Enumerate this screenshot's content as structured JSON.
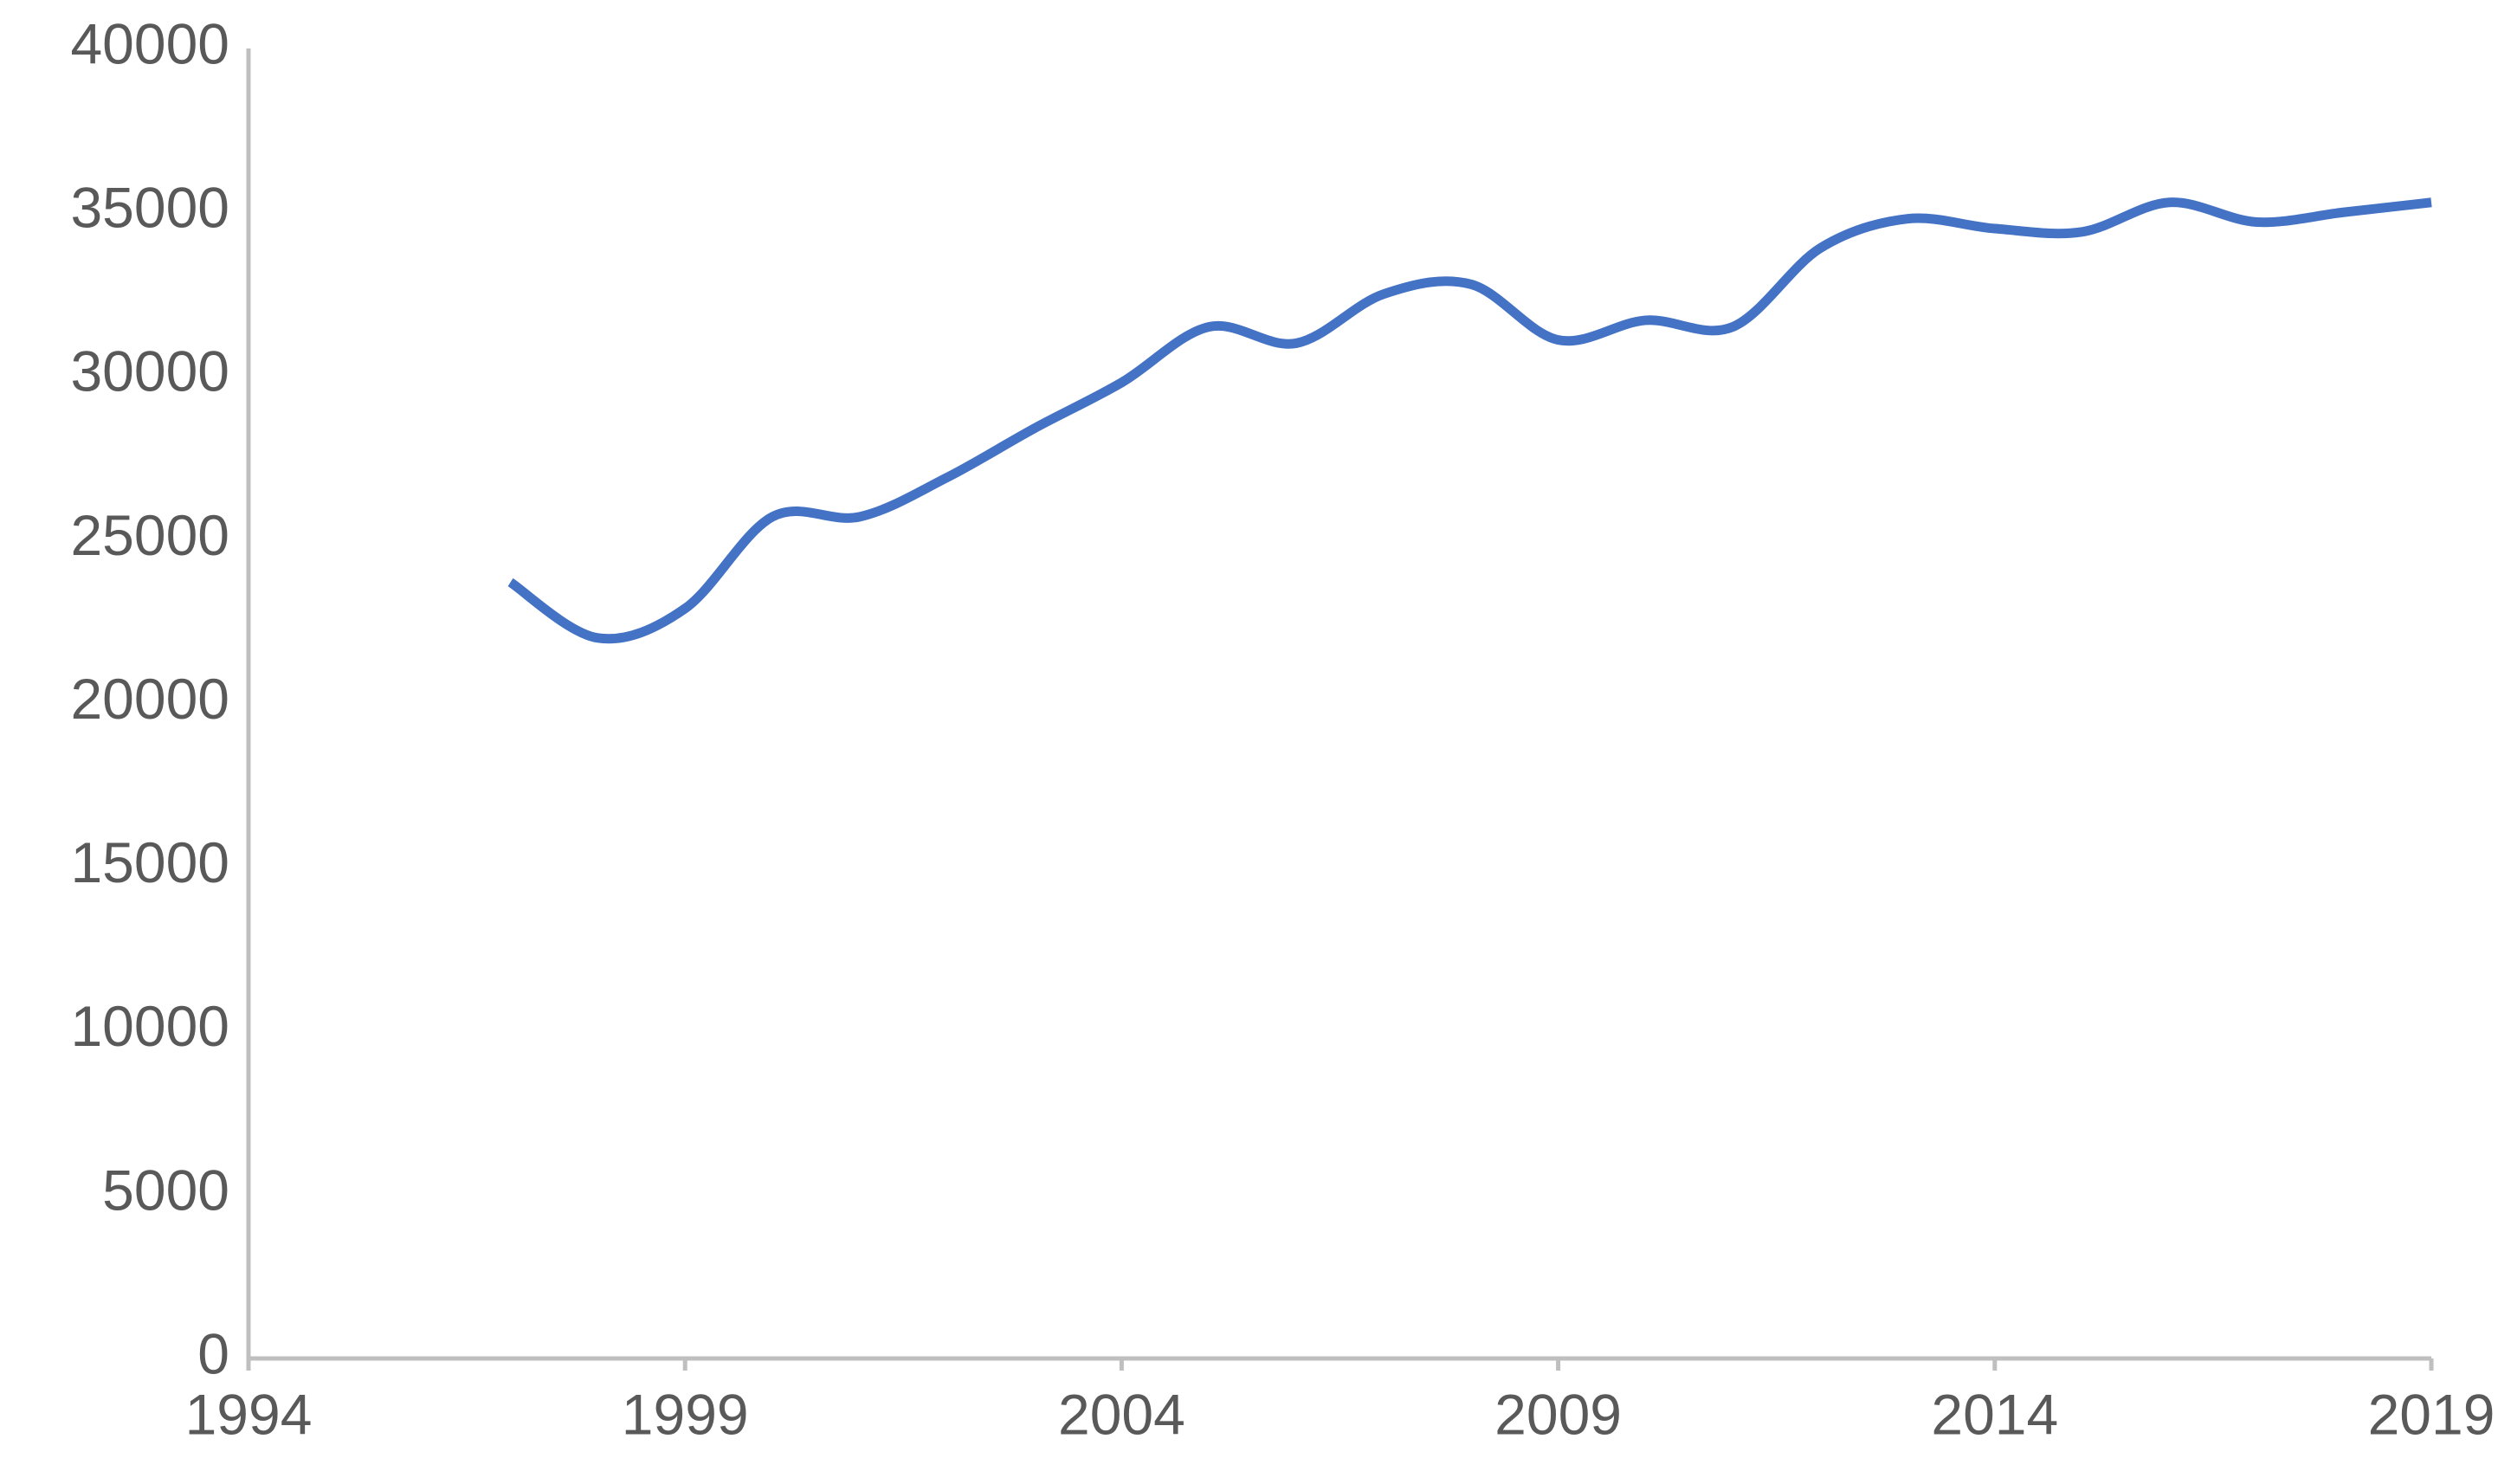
{
  "chart_data": {
    "type": "line",
    "x": [
      1997,
      1998,
      1999,
      2000,
      2001,
      2002,
      2003,
      2004,
      2005,
      2006,
      2007,
      2008,
      2009,
      2010,
      2011,
      2012,
      2013,
      2014,
      2015,
      2016,
      2017,
      2018,
      2019
    ],
    "series": [
      {
        "color": "#4472c4",
        "values": [
          23700,
          22000,
          22900,
          25700,
          25700,
          26900,
          28400,
          29800,
          31500,
          31000,
          32500,
          32800,
          31100,
          31700,
          31500,
          33900,
          34800,
          34500,
          34400,
          35300,
          34700,
          35000,
          35300
        ]
      }
    ],
    "xlim": [
      1994,
      2019
    ],
    "xticks": [
      1994,
      1999,
      2004,
      2009,
      2014,
      2019
    ],
    "ylim": [
      0,
      40000
    ],
    "yticks": [
      0,
      5000,
      10000,
      15000,
      20000,
      25000,
      30000,
      35000,
      40000
    ],
    "grid": false,
    "smooth": true
  }
}
